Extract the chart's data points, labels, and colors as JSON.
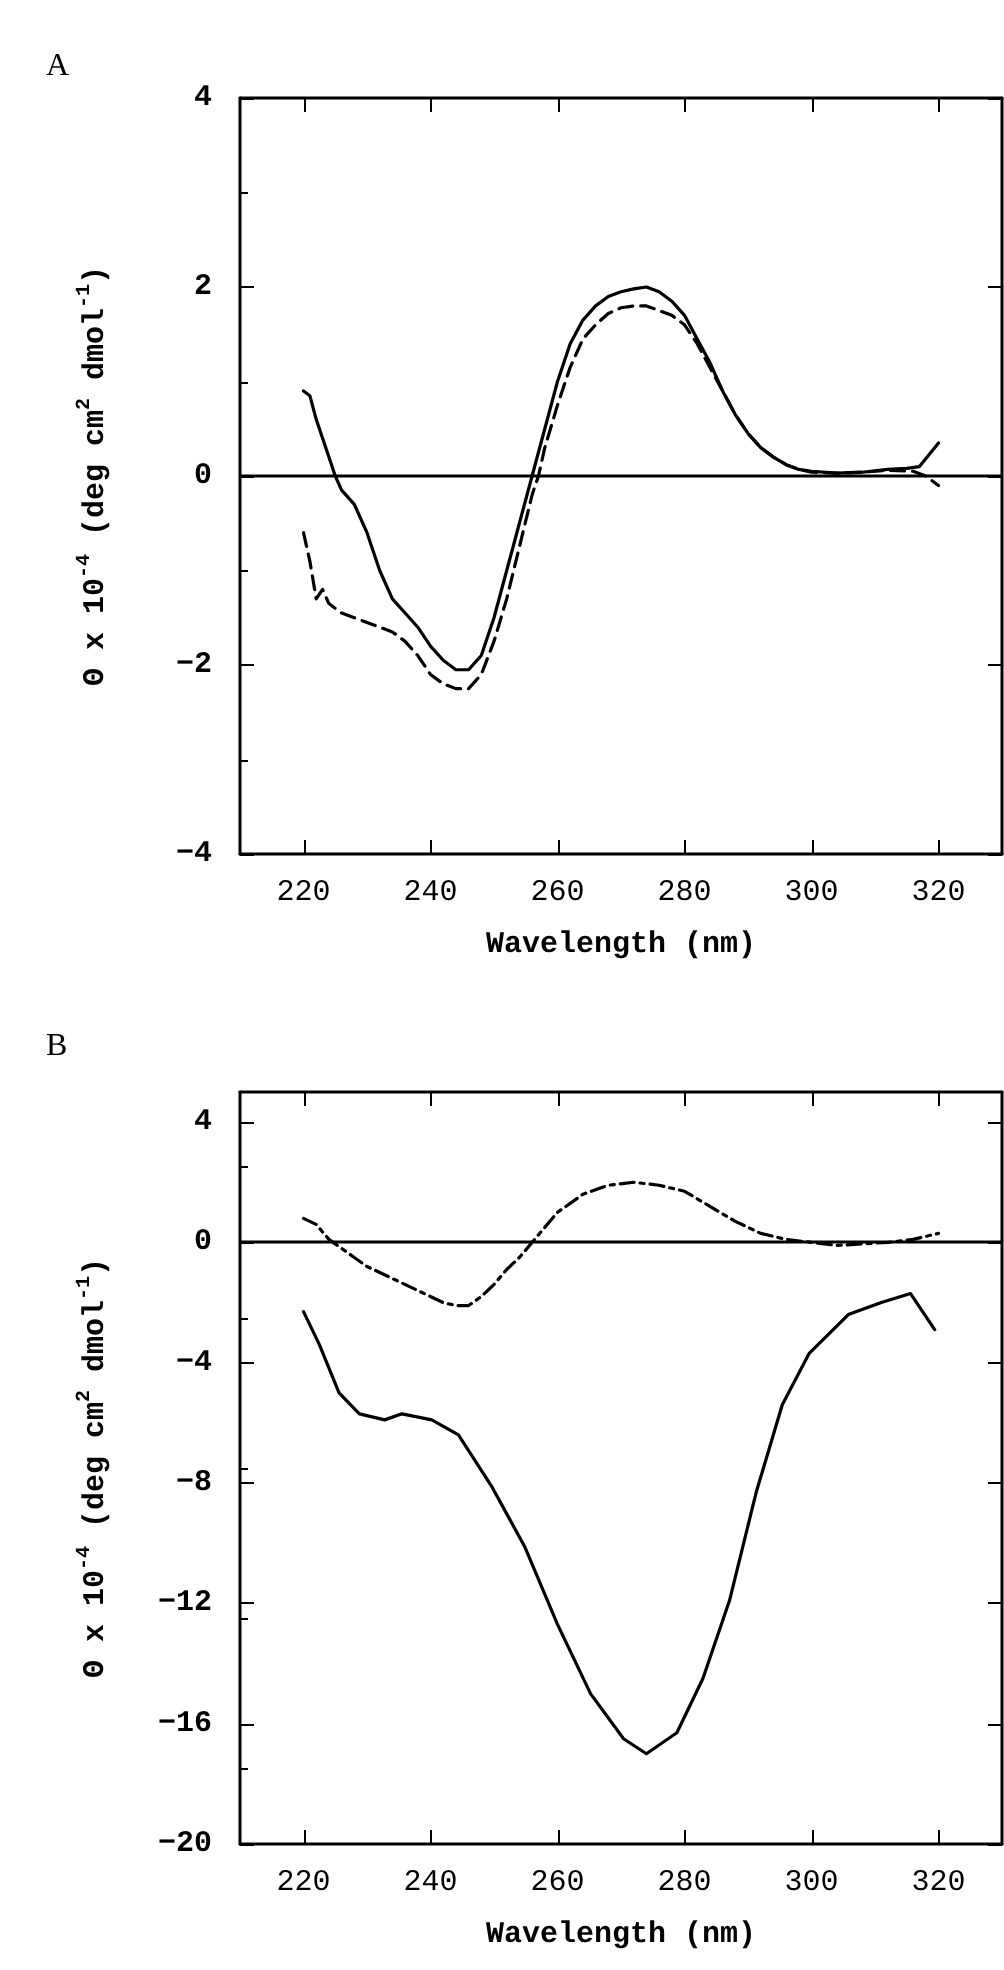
{
  "chart_data": [
    {
      "type": "line",
      "title": "A",
      "xlabel": "Wavelength (nm)",
      "ylabel": "Θ x 10$^{-4}$ (deg cm$^{2}$ dmol$^{-1}$)",
      "xlim": [
        210,
        330
      ],
      "xticks": [
        220,
        240,
        260,
        280,
        300,
        320
      ],
      "ylim": [
        -4,
        4
      ],
      "yticks": [
        -4,
        -2,
        0,
        2,
        4
      ],
      "grid": false,
      "marker": "none",
      "ref_lines": [
        {
          "axis": "y",
          "value": 0,
          "color": "#000000",
          "line_style": "solid"
        }
      ],
      "series": [
        {
          "color": "#000000",
          "line_style": "solid",
          "x": [
            220,
            221,
            222,
            224,
            225,
            226,
            228,
            230,
            232,
            234,
            236,
            238,
            240,
            242,
            244,
            246,
            248,
            250,
            252,
            254,
            256,
            258,
            260,
            262,
            264,
            266,
            268,
            270,
            272,
            274,
            276,
            278,
            280,
            282,
            284,
            286,
            288,
            290,
            292,
            294,
            296,
            298,
            300,
            304,
            308,
            312,
            315,
            317,
            320
          ],
          "values": [
            0.9,
            0.85,
            0.6,
            0.2,
            0,
            -0.15,
            -0.3,
            -0.6,
            -1,
            -1.3,
            -1.45,
            -1.6,
            -1.8,
            -1.95,
            -2.05,
            -2.05,
            -1.9,
            -1.5,
            -1,
            -0.5,
            0,
            0.5,
            1,
            1.4,
            1.65,
            1.8,
            1.9,
            1.95,
            1.98,
            2,
            1.95,
            1.85,
            1.7,
            1.45,
            1.2,
            0.9,
            0.65,
            0.45,
            0.3,
            0.2,
            0.12,
            0.07,
            0.05,
            0.03,
            0.04,
            0.07,
            0.08,
            0.1,
            0.35
          ]
        },
        {
          "color": "#000000",
          "line_style": "dashed",
          "x": [
            220,
            221,
            222,
            223,
            224,
            226,
            228,
            230,
            232,
            234,
            236,
            238,
            240,
            242,
            244,
            246,
            248,
            250,
            252,
            254,
            256,
            257,
            258,
            260,
            262,
            264,
            266,
            268,
            270,
            272,
            274,
            276,
            278,
            280,
            282,
            284,
            286,
            288,
            290,
            292,
            294,
            296,
            298,
            300,
            304,
            308,
            312,
            316,
            318,
            320
          ],
          "values": [
            -0.6,
            -0.9,
            -1.3,
            -1.2,
            -1.35,
            -1.45,
            -1.5,
            -1.55,
            -1.6,
            -1.65,
            -1.75,
            -1.9,
            -2.1,
            -2.2,
            -2.25,
            -2.25,
            -2.1,
            -1.75,
            -1.3,
            -0.75,
            -0.2,
            0,
            0.3,
            0.75,
            1.15,
            1.45,
            1.6,
            1.72,
            1.78,
            1.8,
            1.8,
            1.75,
            1.7,
            1.6,
            1.4,
            1.15,
            0.9,
            0.65,
            0.45,
            0.3,
            0.2,
            0.12,
            0.07,
            0.04,
            0.03,
            0.04,
            0.06,
            0.05,
            0,
            -0.1
          ]
        }
      ]
    },
    {
      "type": "line",
      "title": "B",
      "xlabel": "Wavelength (nm)",
      "ylabel": "Θ x 10$^{-4}$ (deg cm$^{2}$ dmol$^{-1}$)",
      "xlim": [
        210,
        330
      ],
      "xticks": [
        220,
        240,
        260,
        280,
        300,
        320
      ],
      "ylim": [
        -20,
        5
      ],
      "yticks": [
        -20,
        -16,
        -12,
        -8,
        -4,
        0,
        4
      ],
      "grid": false,
      "marker": "none",
      "ref_lines": [
        {
          "axis": "y",
          "value": 0,
          "color": "#000000",
          "line_style": "solid"
        }
      ],
      "series": [
        {
          "color": "#000000",
          "line_style": "dotted",
          "x": [
            220,
            222,
            224,
            226,
            228,
            230,
            234,
            238,
            242,
            244,
            246,
            248,
            250,
            252,
            254,
            256,
            258,
            260,
            264,
            268,
            272,
            276,
            280,
            284,
            288,
            292,
            296,
            300,
            304,
            308,
            312,
            316,
            320
          ],
          "values": [
            0.8,
            0.6,
            0.1,
            -0.2,
            -0.5,
            -0.8,
            -1.2,
            -1.6,
            -2,
            -2.1,
            -2.1,
            -1.8,
            -1.4,
            -0.9,
            -0.5,
            0,
            0.5,
            1,
            1.6,
            1.9,
            2,
            1.9,
            1.7,
            1.2,
            0.7,
            0.3,
            0.1,
            0,
            -0.1,
            -0.05,
            0,
            0.1,
            0.3
          ]
        },
        {
          "color": "#000000",
          "line_style": "solid",
          "x": [
            220,
            222.5,
            225.6,
            228.8,
            232.8,
            235.5,
            240.2,
            244.4,
            249.6,
            254.8,
            260,
            265.2,
            270.4,
            274,
            278.8,
            282.9,
            287.1,
            291.3,
            295.4,
            299.6,
            305.8,
            311,
            315.6,
            319.4
          ],
          "values": [
            -2.3,
            -3.4,
            -5,
            -5.7,
            -5.9,
            -5.7,
            -5.9,
            -6.4,
            -8.1,
            -10.1,
            -12.7,
            -15,
            -16.5,
            -17,
            -16.3,
            -14.5,
            -11.9,
            -8.3,
            -5.4,
            -3.7,
            -2.4,
            -2,
            -1.7,
            -2.9
          ]
        }
      ]
    }
  ]
}
